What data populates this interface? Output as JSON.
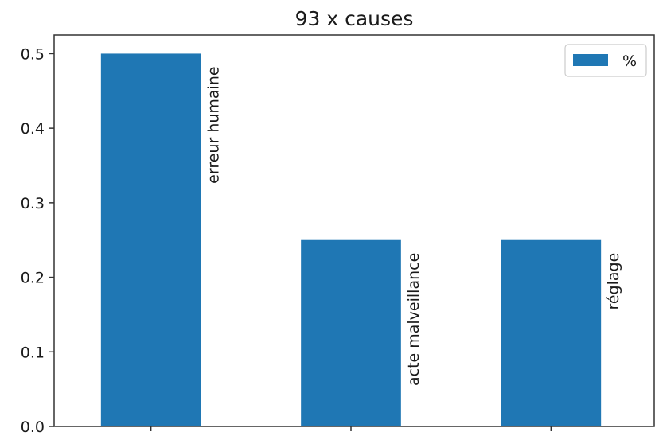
{
  "chart_data": {
    "type": "bar",
    "title": "93 x causes",
    "categories": [
      "erreur humaine",
      "acte malveillance",
      "réglage"
    ],
    "series": [
      {
        "name": "%",
        "values": [
          0.5,
          0.25,
          0.25
        ]
      }
    ],
    "xlabel": "",
    "ylabel": "",
    "ylim": [
      0,
      0.525
    ],
    "yticks": [
      "0.0",
      "0.1",
      "0.2",
      "0.3",
      "0.4",
      "0.5"
    ],
    "ytick_values": [
      0,
      0.1,
      0.2,
      0.3,
      0.4,
      0.5
    ],
    "bar_labels_rotated": true,
    "grid": false,
    "legend_position": "top-right",
    "colors": {
      "bar": "#1f77b4",
      "axis": "#333333"
    }
  }
}
